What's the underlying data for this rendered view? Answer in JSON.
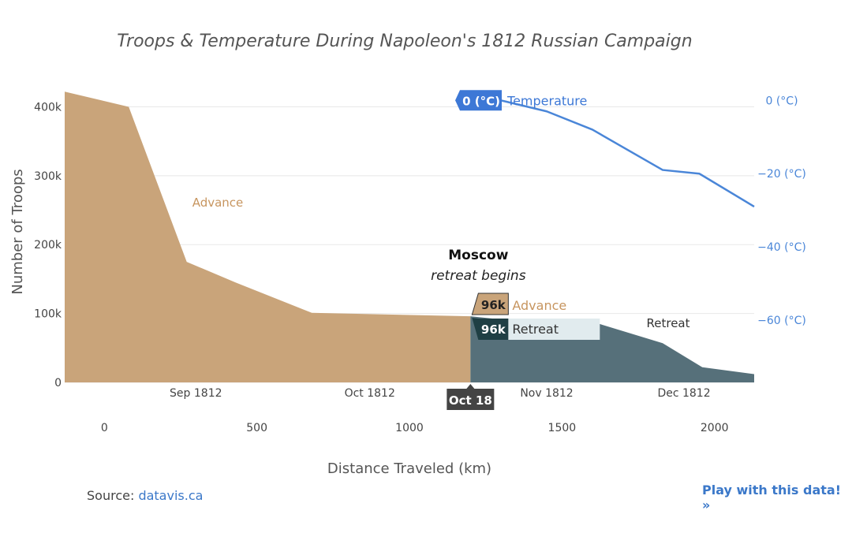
{
  "chart_data": {
    "type": "area",
    "title": "Troops & Temperature During Napoleon's 1812 Russian Campaign",
    "ylabel": "Number of Troops",
    "xlabel": "Distance Traveled (km)",
    "ylim": [
      0,
      420000
    ],
    "y_ticks": [
      {
        "value": 0,
        "label": "0"
      },
      {
        "value": 100000,
        "label": "100k"
      },
      {
        "value": 200000,
        "label": "200k"
      },
      {
        "value": 300000,
        "label": "300k"
      },
      {
        "value": 400000,
        "label": "400k"
      }
    ],
    "y2label": "Temperature",
    "y2lim": [
      -77,
      2
    ],
    "y2_ticks": [
      {
        "value": 0,
        "label": "0 (°C)"
      },
      {
        "value": -20,
        "label": "−20 (°C)"
      },
      {
        "value": -40,
        "label": "−40 (°C)"
      },
      {
        "value": -60,
        "label": "−60 (°C)"
      }
    ],
    "xlim": [
      -130,
      2130
    ],
    "x_ticks_distance": [
      {
        "value": 0,
        "label": "0"
      },
      {
        "value": 500,
        "label": "500"
      },
      {
        "value": 1000,
        "label": "1000"
      },
      {
        "value": 1500,
        "label": "1500"
      },
      {
        "value": 2000,
        "label": "2000"
      }
    ],
    "x_ticks_date": [
      {
        "value": 300,
        "label": "Sep 1812"
      },
      {
        "value": 870,
        "label": "Oct 1812"
      },
      {
        "value": 1450,
        "label": "Nov 1812"
      },
      {
        "value": 1900,
        "label": "Dec 1812"
      }
    ],
    "series": [
      {
        "name": "Advance",
        "color": "#c9a47a",
        "x": [
          -130,
          80,
          270,
          430,
          680,
          1200
        ],
        "y": [
          422000,
          400000,
          175000,
          145000,
          101000,
          96000
        ]
      },
      {
        "name": "Retreat",
        "color": "#56707a",
        "x": [
          1200,
          1330,
          1600,
          1830,
          1960,
          2130
        ],
        "y": [
          96000,
          90000,
          88000,
          57000,
          22000,
          12000
        ]
      },
      {
        "name": "Temperature",
        "color": "#4a86d8",
        "axis": "y2",
        "x": [
          1300,
          1450,
          1600,
          1830,
          1950,
          2130
        ],
        "y": [
          0,
          -3,
          -8,
          -19,
          -20,
          -29
        ]
      }
    ],
    "annotations": {
      "advance_label": "Advance",
      "retreat_label": "Retreat",
      "moscow_title": "Moscow",
      "moscow_subtitle": "retreat begins",
      "moscow_x": 1200
    },
    "hover": {
      "x_label": "Oct 18",
      "advance": {
        "value": "96k",
        "name": "Advance"
      },
      "retreat": {
        "value": "96k",
        "name": "Retreat"
      },
      "temperature": {
        "value": "0 (°C)",
        "name": "Temperature"
      }
    }
  },
  "footer": {
    "source_prefix": "Source:",
    "source_link": "datavis.ca",
    "play_link": "Play with this data! »"
  }
}
